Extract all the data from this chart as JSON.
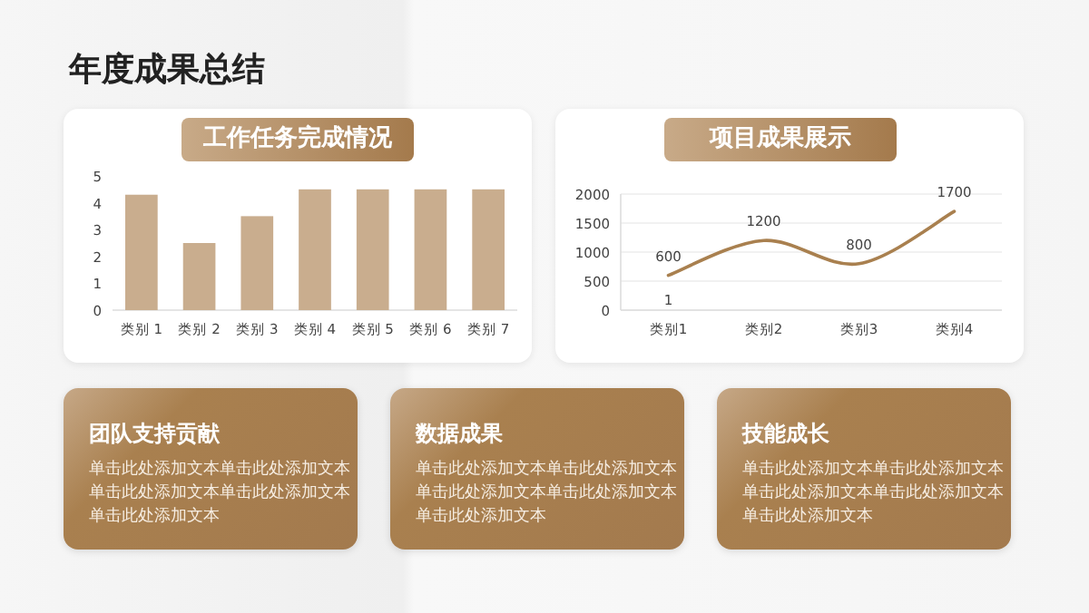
{
  "chart_data": [
    {
      "type": "other",
      "title": "年度成果总结"
    },
    {
      "type": "bar",
      "title": "工作任务完成情况",
      "categories": [
        "类别 1",
        "类别 2",
        "类别 3",
        "类别 4",
        "类别 5",
        "类别 6",
        "类别 7"
      ],
      "values": [
        4.3,
        2.5,
        3.5,
        4.5,
        4.5,
        4.5,
        4.5
      ],
      "color": "#c9ad8e",
      "ylim": [
        0,
        5
      ],
      "yticks": [
        0,
        1,
        2,
        3,
        4,
        5
      ],
      "grid": false
    },
    {
      "type": "line",
      "title": "项目成果展示",
      "categories": [
        "类别1",
        "类别2",
        "类别3",
        "类别4"
      ],
      "values": [
        600,
        1200,
        800,
        1700
      ],
      "color": "#a9804f",
      "ylim": [
        0,
        2000
      ],
      "yticks": [
        0,
        500,
        1000,
        1500,
        2000
      ],
      "grid": "y",
      "data_labels": true,
      "annotations": [
        {
          "text": "1",
          "x": "类别1",
          "y": 600
        }
      ]
    },
    {
      "type": "other",
      "title": "团队支持贡献",
      "annotations": [
        "单击此处添加文本单击此处添加文本单击此处添加文本单击此处添加文本单击此处添加文本"
      ]
    },
    {
      "type": "other",
      "title": "数据成果",
      "annotations": [
        "单击此处添加文本单击此处添加文本单击此处添加文本单击此处添加文本单击此处添加文本"
      ]
    },
    {
      "type": "other",
      "title": "技能成长",
      "annotations": [
        "单击此处添加文本单击此处添加文本单击此处添加文本单击此处添加文本单击此处添加文本"
      ]
    }
  ]
}
